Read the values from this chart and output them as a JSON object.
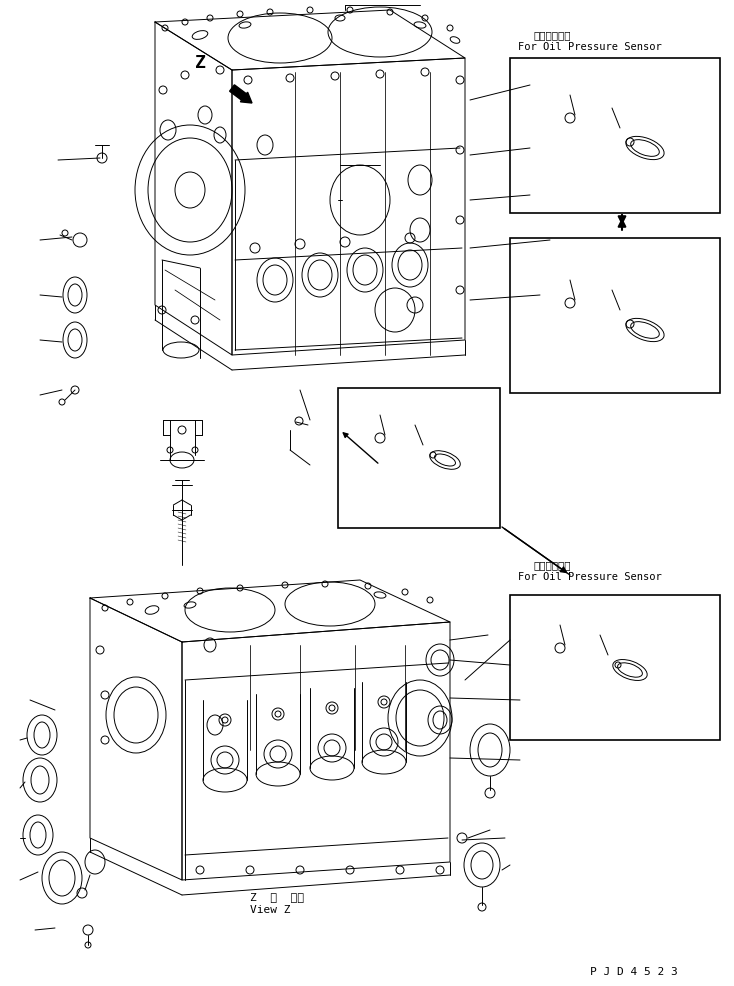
{
  "background_color": "#ffffff",
  "line_color": "#000000",
  "fig_width": 7.34,
  "fig_height": 9.86,
  "dpi": 100,
  "text_upper_right_line1": "油圧センサ用",
  "text_upper_right_line2": "For Oil Pressure Sensor",
  "text_lower_right_line1": "油圧センサ用",
  "text_lower_right_line2": "For Oil Pressure Sensor",
  "text_view_z_line1": "Z  視  ．．",
  "text_view_z_line2": "View Z",
  "text_pjd": "P J D 4 5 2 3",
  "text_z_label": "Z"
}
